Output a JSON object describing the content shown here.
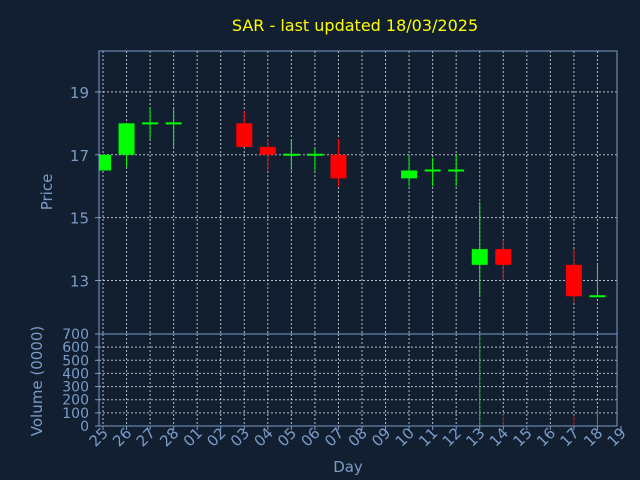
{
  "chart_data": {
    "title": "SAR - last updated 18/03/2025",
    "price_ylabel": "Price",
    "volume_ylabel": "Volume (0000)",
    "xlabel": "Day",
    "colors": {
      "background": "#111f30",
      "axis_text": "#7a9cc8",
      "title": "#ffff00",
      "up": "#00ff00",
      "down": "#ff0000",
      "volume_up": "#00c000",
      "volume_down": "#c00000",
      "grid": "#d0d8e0"
    },
    "price_panel": {
      "type": "candlestick",
      "ylim": [
        11.3,
        20.3
      ],
      "yticks": [
        "13",
        "15",
        "17",
        "19"
      ],
      "grid": true
    },
    "volume_panel": {
      "type": "bar",
      "ylim": [
        0,
        700
      ],
      "yticks": [
        "0",
        "100",
        "200",
        "300",
        "400",
        "500",
        "600",
        "700"
      ],
      "grid": true
    },
    "x_labels": [
      "25",
      "26",
      "27",
      "28",
      "01",
      "02",
      "03",
      "04",
      "05",
      "06",
      "07",
      "08",
      "09",
      "10",
      "11",
      "12",
      "13",
      "14",
      "15",
      "16",
      "17",
      "18",
      "19"
    ],
    "candles": [
      {
        "day": "25",
        "open": 16.5,
        "high": 17.0,
        "low": 16.5,
        "close": 17.0
      },
      {
        "day": "26",
        "open": 17.0,
        "high": 18.0,
        "low": 16.6,
        "close": 18.0
      },
      {
        "day": "27",
        "open": 18.0,
        "high": 18.5,
        "low": 17.5,
        "close": 18.0
      },
      {
        "day": "28",
        "open": 18.0,
        "high": 18.45,
        "low": 17.25,
        "close": 18.0
      },
      {
        "day": "03",
        "open": 18.0,
        "high": 18.4,
        "low": 17.25,
        "close": 17.25
      },
      {
        "day": "04",
        "open": 17.25,
        "high": 17.5,
        "low": 16.5,
        "close": 17.0
      },
      {
        "day": "05",
        "open": 17.0,
        "high": 17.5,
        "low": 16.5,
        "close": 17.0
      },
      {
        "day": "06",
        "open": 17.0,
        "high": 17.2,
        "low": 16.5,
        "close": 17.0
      },
      {
        "day": "07",
        "open": 17.0,
        "high": 17.5,
        "low": 16.0,
        "close": 16.25
      },
      {
        "day": "10",
        "open": 16.25,
        "high": 17.0,
        "low": 16.0,
        "close": 16.5
      },
      {
        "day": "11",
        "open": 16.5,
        "high": 16.9,
        "low": 16.0,
        "close": 16.5
      },
      {
        "day": "12",
        "open": 16.5,
        "high": 17.0,
        "low": 16.0,
        "close": 16.5
      },
      {
        "day": "13",
        "open": 13.5,
        "high": 15.5,
        "low": 12.5,
        "close": 14.0
      },
      {
        "day": "14",
        "open": 14.0,
        "high": 14.3,
        "low": 13.0,
        "close": 13.5
      },
      {
        "day": "17",
        "open": 13.5,
        "high": 14.0,
        "low": 12.3,
        "close": 12.5
      },
      {
        "day": "18",
        "open": 12.5,
        "high": 13.5,
        "low": 12.5,
        "close": 12.5
      }
    ],
    "volume": [
      {
        "day": "25",
        "value": 3,
        "direction": "up"
      },
      {
        "day": "26",
        "value": 5,
        "direction": "up"
      },
      {
        "day": "27",
        "value": 2,
        "direction": "up"
      },
      {
        "day": "28",
        "value": 2,
        "direction": "up"
      },
      {
        "day": "03",
        "value": 5,
        "direction": "down"
      },
      {
        "day": "04",
        "value": 8,
        "direction": "down"
      },
      {
        "day": "05",
        "value": 3,
        "direction": "up"
      },
      {
        "day": "06",
        "value": 2,
        "direction": "up"
      },
      {
        "day": "07",
        "value": 8,
        "direction": "down"
      },
      {
        "day": "10",
        "value": 3,
        "direction": "up"
      },
      {
        "day": "11",
        "value": 2,
        "direction": "up"
      },
      {
        "day": "12",
        "value": 3,
        "direction": "up"
      },
      {
        "day": "13",
        "value": 700,
        "direction": "up"
      },
      {
        "day": "14",
        "value": 90,
        "direction": "down"
      },
      {
        "day": "17",
        "value": 80,
        "direction": "down"
      },
      {
        "day": "18",
        "value": 130,
        "direction": "up"
      }
    ]
  }
}
